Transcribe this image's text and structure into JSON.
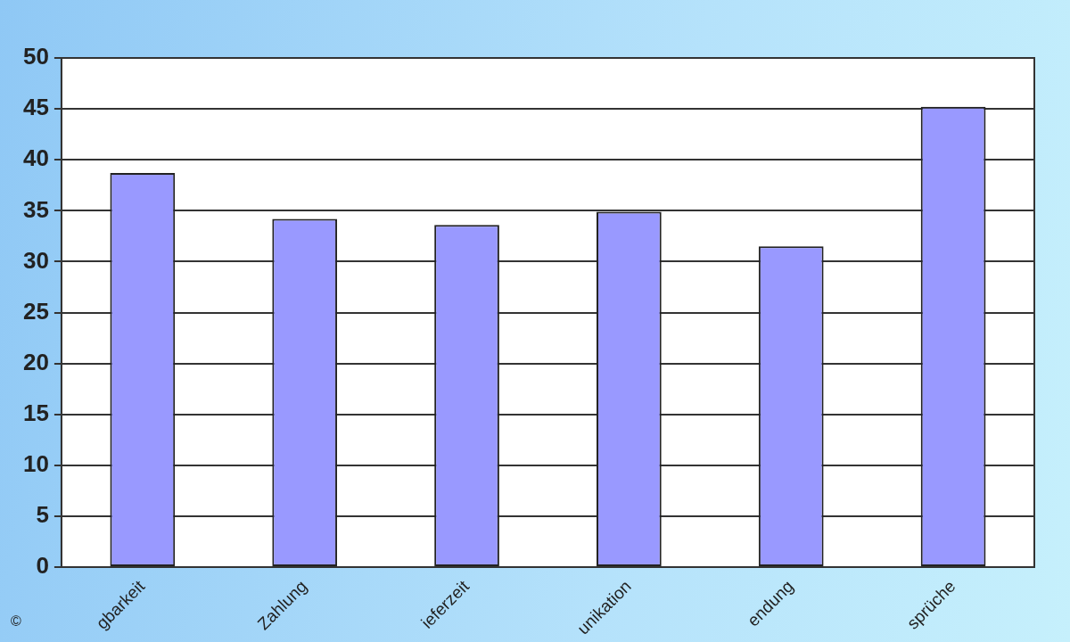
{
  "chart_data": {
    "type": "bar",
    "categories": [
      "gbarkeit",
      "Zahlung",
      "ieferzeit",
      "unikation",
      "endung",
      "sprüche"
    ],
    "values": [
      38.7,
      34.2,
      33.6,
      34.9,
      31.5,
      45.2
    ],
    "color": "#9999ff",
    "ylim": [
      0,
      50
    ],
    "yticks": [
      0,
      5,
      10,
      15,
      20,
      25,
      30,
      35,
      40,
      45,
      50
    ],
    "grid": "y",
    "legend": false,
    "annotations": [
      "©"
    ]
  }
}
